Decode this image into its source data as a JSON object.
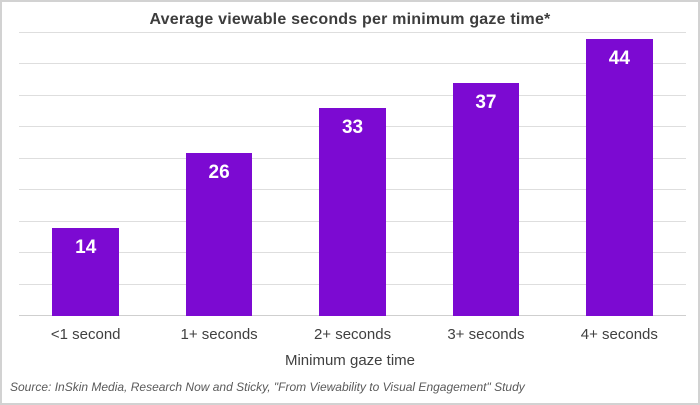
{
  "window": {
    "background": "#ffffff",
    "frame_border_color": "#d2d2d2"
  },
  "chart_data": {
    "type": "bar",
    "title": "Average viewable seconds per minimum gaze time*",
    "categories": [
      "<1 second",
      "1+ seconds",
      "2+ seconds",
      "3+ seconds",
      "4+ seconds"
    ],
    "values": [
      14,
      26,
      33,
      37,
      44
    ],
    "xlabel": "Minimum gaze time",
    "ylabel": "",
    "ylim": [
      0,
      45
    ],
    "gridline_step": 5,
    "grid": "horizontal",
    "y_axis_tick_labels_visible": false,
    "legend_position": "none",
    "bar_color": "#7c0ad2",
    "data_label_color": "#ffffff",
    "gridline_color": "#dedede",
    "data_labels_position": "inside-top"
  },
  "source_note": "Source:  InSkin Media, Research Now and Sticky, \"From Viewability to Visual Engagement\" Study"
}
